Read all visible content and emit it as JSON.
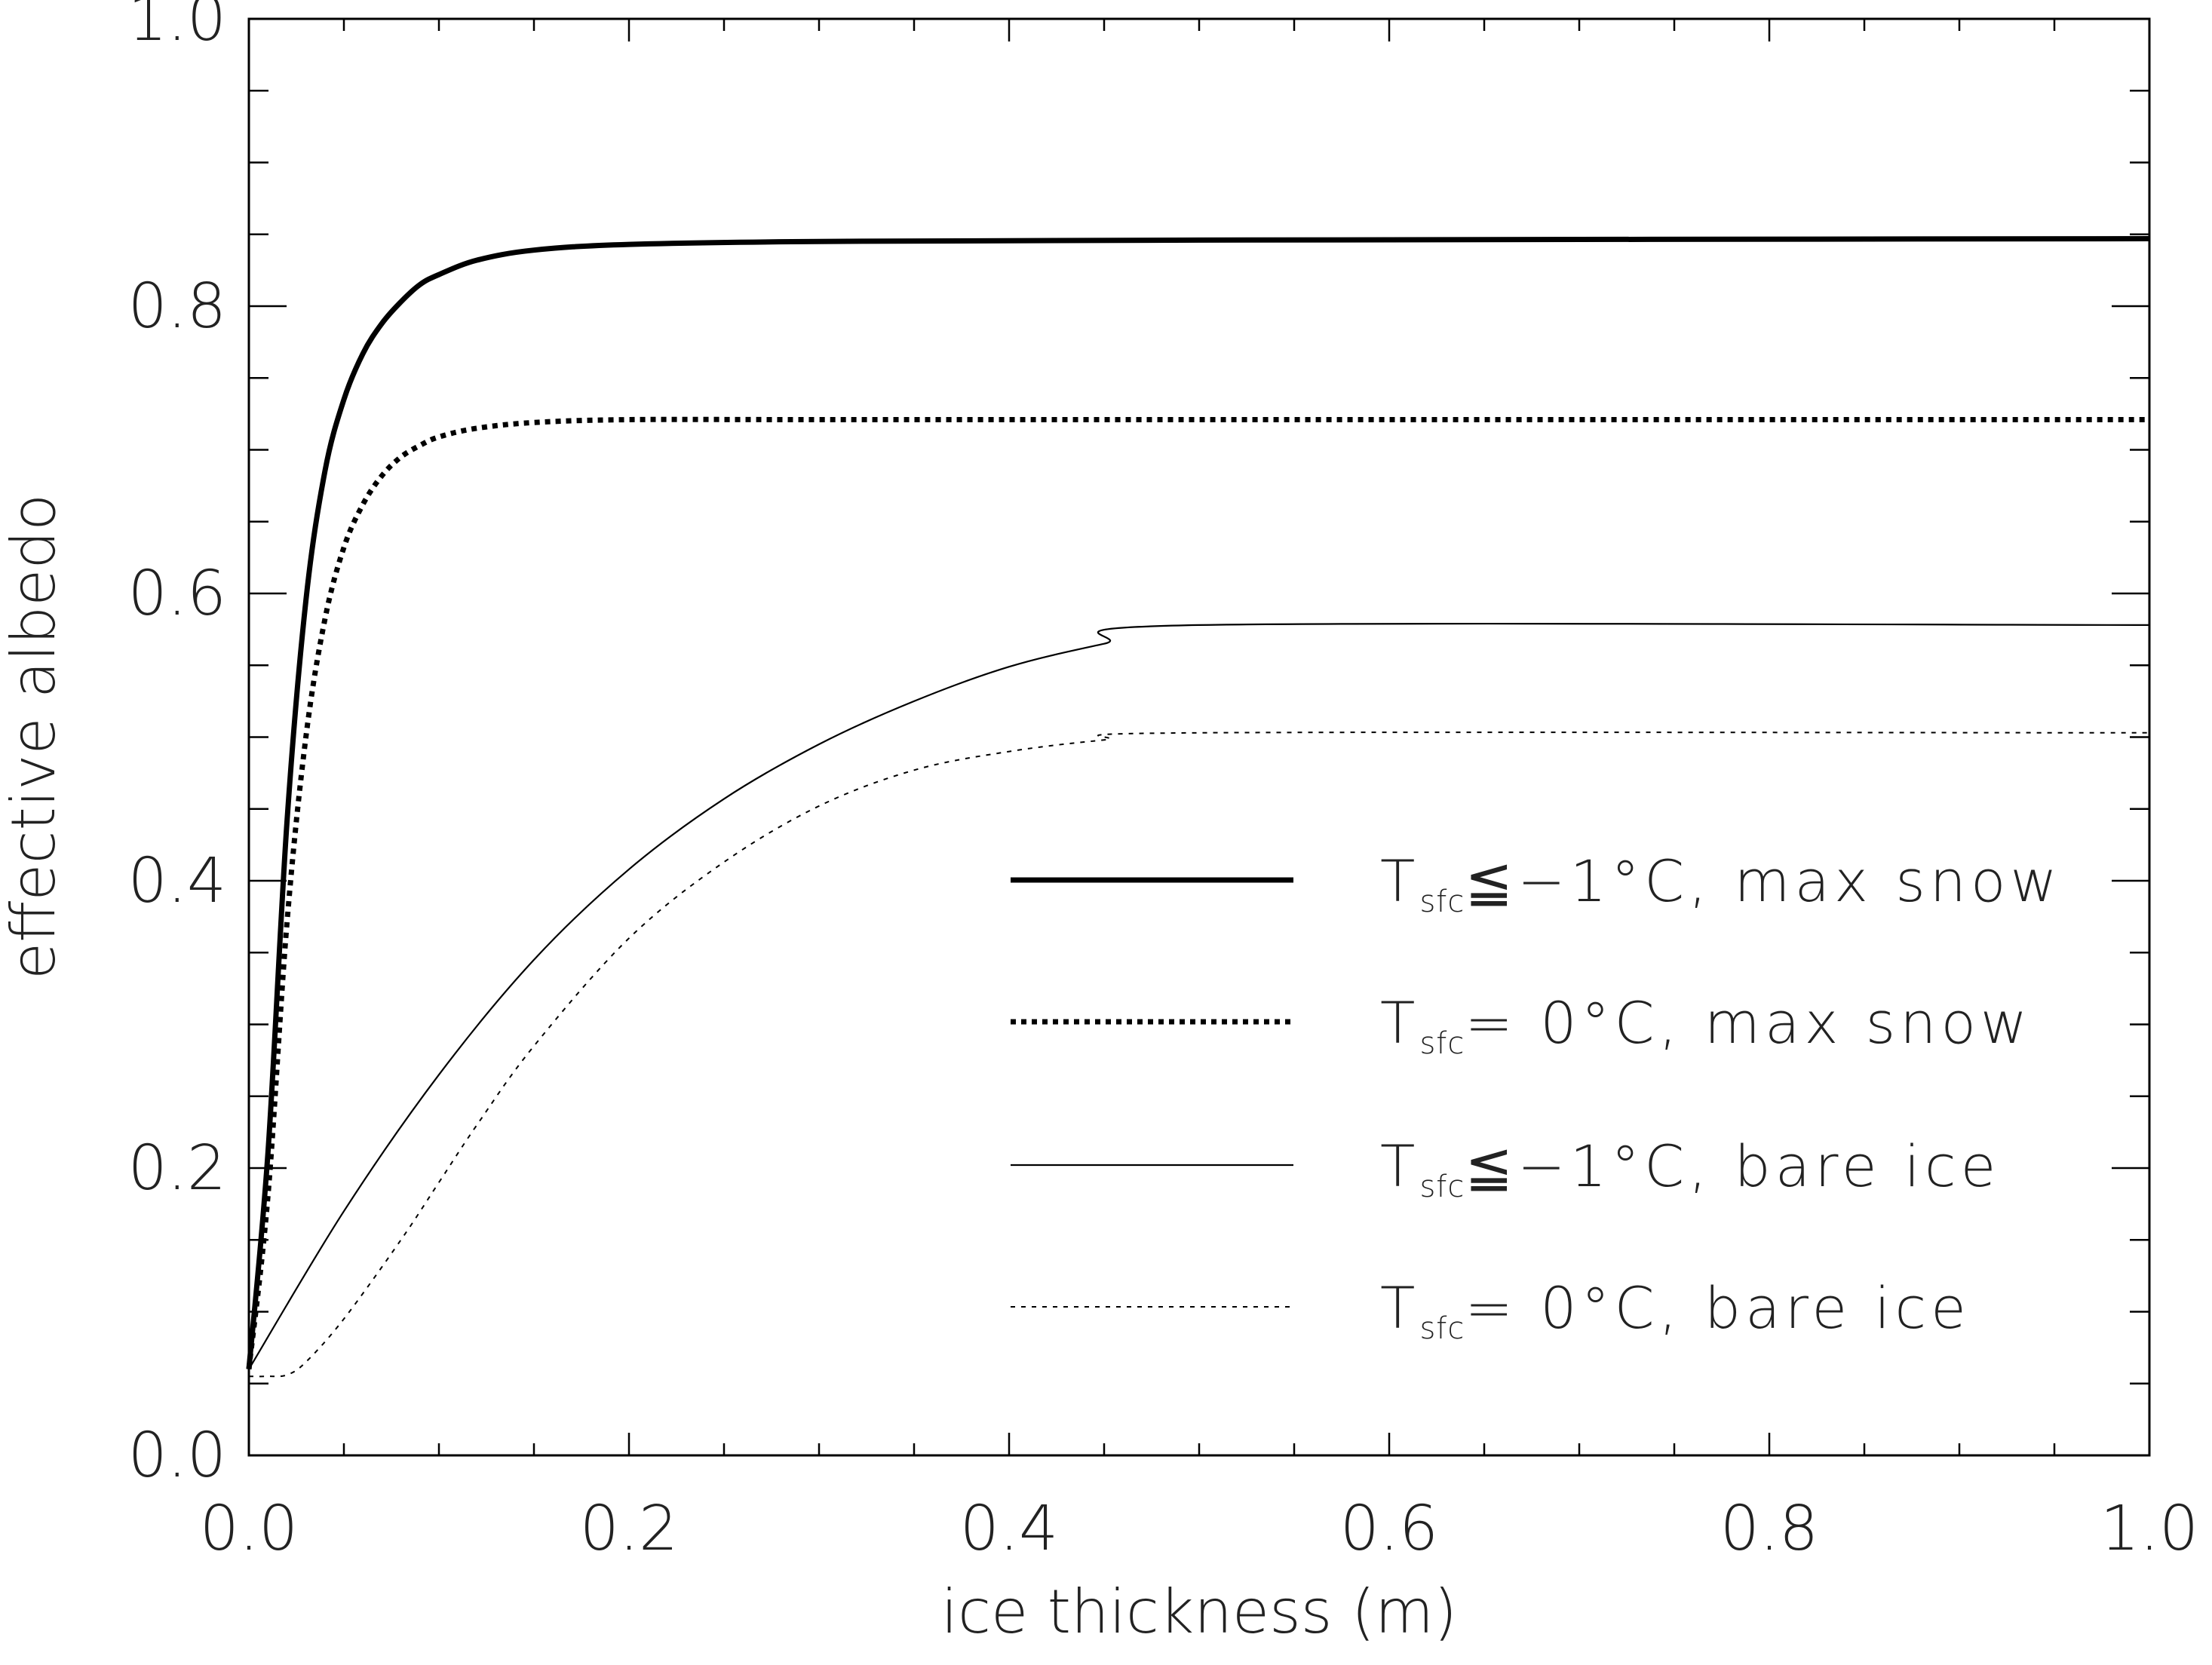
{
  "chart_data": {
    "type": "line",
    "title": "",
    "xlabel": "ice thickness (m)",
    "ylabel": "effective albedo",
    "xlim": [
      0.0,
      1.0
    ],
    "ylim": [
      0.0,
      1.0
    ],
    "x_ticks": [
      "0.0",
      "0.2",
      "0.4",
      "0.6",
      "0.8",
      "1.0"
    ],
    "y_ticks": [
      "0.0",
      "0.2",
      "0.4",
      "0.6",
      "0.8",
      "1.0"
    ],
    "grid": false,
    "legend_position": "lower-right",
    "series": [
      {
        "name": "T_sfc ≦ −1°C, max snow",
        "legend_main": "T",
        "legend_sub": "sfc",
        "legend_rest": "≦−1°C, max snow",
        "style": "thick-solid",
        "color": "#000000",
        "x": [
          0.0,
          0.01,
          0.02,
          0.03,
          0.04,
          0.05,
          0.06,
          0.07,
          0.08,
          0.09,
          0.1,
          0.12,
          0.15,
          0.2,
          0.3,
          0.5,
          1.0
        ],
        "y": [
          0.06,
          0.21,
          0.44,
          0.595,
          0.685,
          0.735,
          0.767,
          0.788,
          0.803,
          0.815,
          0.822,
          0.832,
          0.839,
          0.843,
          0.845,
          0.846,
          0.847
        ]
      },
      {
        "name": "T_sfc = 0°C, max snow",
        "legend_main": "T",
        "legend_sub": "sfc",
        "legend_rest": "= 0°C, max snow",
        "style": "thick-dotted",
        "color": "#000000",
        "x": [
          0.0,
          0.01,
          0.02,
          0.03,
          0.04,
          0.05,
          0.06,
          0.07,
          0.08,
          0.09,
          0.1,
          0.12,
          0.15,
          0.2,
          0.3,
          0.5,
          1.0
        ],
        "y": [
          0.06,
          0.18,
          0.37,
          0.5,
          0.582,
          0.632,
          0.662,
          0.682,
          0.695,
          0.703,
          0.709,
          0.715,
          0.719,
          0.721,
          0.721,
          0.721,
          0.721
        ]
      },
      {
        "name": "T_sfc ≦ −1°C, bare ice",
        "legend_main": "T",
        "legend_sub": "sfc",
        "legend_rest": "≦−1°C, bare ice",
        "style": "thin-solid",
        "color": "#000000",
        "x": [
          0.0,
          0.05,
          0.1,
          0.15,
          0.2,
          0.25,
          0.3,
          0.35,
          0.4,
          0.45,
          0.5,
          1.0
        ],
        "y": [
          0.06,
          0.17,
          0.265,
          0.345,
          0.408,
          0.457,
          0.495,
          0.525,
          0.549,
          0.565,
          0.578,
          0.578
        ]
      },
      {
        "name": "T_sfc = 0°C, bare ice",
        "legend_main": "T",
        "legend_sub": "sfc",
        "legend_rest": "= 0°C, bare ice",
        "style": "thin-dotted",
        "color": "#000000",
        "x": [
          0.0,
          0.01,
          0.02,
          0.03,
          0.05,
          0.08,
          0.1,
          0.12,
          0.15,
          0.2,
          0.25,
          0.3,
          0.35,
          0.4,
          0.45,
          0.5,
          1.0
        ],
        "y": [
          0.055,
          0.055,
          0.056,
          0.065,
          0.095,
          0.15,
          0.19,
          0.23,
          0.285,
          0.36,
          0.413,
          0.452,
          0.477,
          0.49,
          0.498,
          0.503,
          0.503
        ]
      }
    ]
  }
}
